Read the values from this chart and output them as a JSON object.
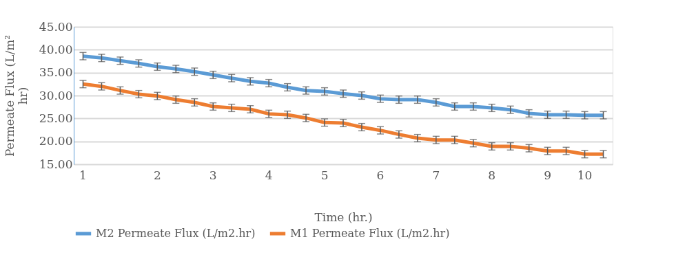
{
  "chart_data": {
    "type": "line",
    "xlabel": "Time (hr.)",
    "ylabel": "Permeate Flux (L/m² hr)",
    "categories": [
      "1",
      null,
      null,
      null,
      "2",
      null,
      null,
      "3",
      null,
      null,
      "4",
      null,
      null,
      "5",
      null,
      null,
      "6",
      null,
      null,
      "7",
      null,
      null,
      "8",
      null,
      null,
      "9",
      null,
      "10",
      null
    ],
    "series": [
      {
        "name": "M2 Permeate Flux (L/m2.hr)",
        "color": "#5b9bd5",
        "values": [
          38.6,
          38.2,
          37.6,
          37.0,
          36.3,
          35.8,
          35.2,
          34.5,
          33.8,
          33.1,
          32.7,
          31.8,
          31.1,
          30.9,
          30.4,
          30.0,
          29.3,
          29.1,
          29.1,
          28.5,
          27.6,
          27.6,
          27.3,
          26.9,
          26.1,
          25.8,
          25.8,
          25.7,
          25.7
        ],
        "errors": [
          0.8,
          0.8,
          0.8,
          0.8,
          0.8,
          0.8,
          0.8,
          0.8,
          0.8,
          0.8,
          0.8,
          0.8,
          0.8,
          0.8,
          0.8,
          0.8,
          0.8,
          0.8,
          0.8,
          0.8,
          0.8,
          0.8,
          0.8,
          0.8,
          0.8,
          0.8,
          0.8,
          0.8,
          0.8
        ]
      },
      {
        "name": "M1 Permeate Flux (L/m2.hr)",
        "color": "#ed7d31",
        "values": [
          32.5,
          32.0,
          31.1,
          30.3,
          29.9,
          29.1,
          28.5,
          27.6,
          27.3,
          27.0,
          26.0,
          25.8,
          25.1,
          24.1,
          24.0,
          23.1,
          22.4,
          21.5,
          20.7,
          20.3,
          20.3,
          19.6,
          18.9,
          18.9,
          18.5,
          17.9,
          17.9,
          17.2,
          17.2
        ],
        "errors": [
          0.8,
          0.8,
          0.8,
          0.8,
          0.8,
          0.8,
          0.8,
          0.8,
          0.8,
          0.8,
          0.8,
          0.8,
          0.8,
          0.8,
          0.8,
          0.8,
          0.8,
          0.8,
          0.8,
          0.8,
          0.8,
          0.8,
          0.8,
          0.8,
          0.8,
          0.8,
          0.8,
          0.8,
          0.8
        ]
      }
    ],
    "ylim": [
      15,
      45
    ],
    "yticks": [
      {
        "value": 15,
        "label": "15.00"
      },
      {
        "value": 20,
        "label": "20.00"
      },
      {
        "value": 25,
        "label": "25.00"
      },
      {
        "value": 30,
        "label": "30.00"
      },
      {
        "value": 35,
        "label": "35.00"
      },
      {
        "value": 40,
        "label": "40.00"
      },
      {
        "value": 45,
        "label": "45.00"
      }
    ],
    "grid": "y",
    "legend": "bottom",
    "marker": "none",
    "line_style": "solid"
  }
}
